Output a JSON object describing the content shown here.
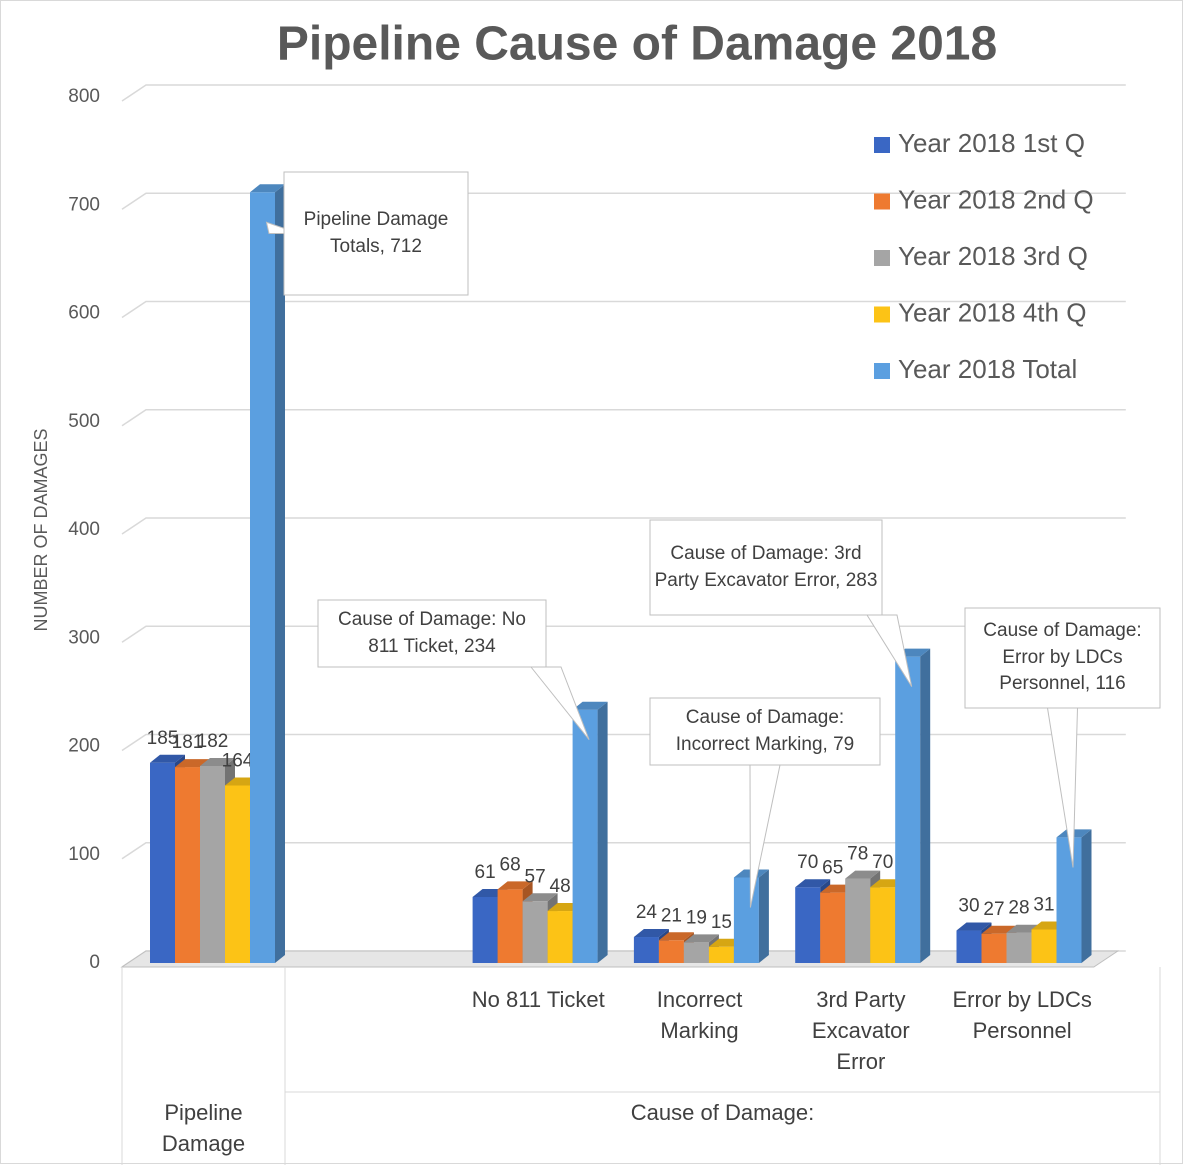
{
  "chart_data": {
    "type": "bar3d",
    "title": "Pipeline Cause of Damage 2018",
    "y_label": "NUMBER OF DAMAGES",
    "categories": [
      null,
      null,
      "No 811 Ticket",
      "Incorrect Marking",
      "3rd Party Excavator Error",
      "Error by LDCs Personnel"
    ],
    "groups": [
      {
        "label": "Pipeline Damage",
        "count": 1
      },
      {
        "label": "Cause of Damage:",
        "count": 5
      }
    ],
    "series": [
      {
        "name": "Year 2018 1st Q",
        "color": "#3a67c4",
        "values": [
          185,
          null,
          61,
          24,
          70,
          30
        ]
      },
      {
        "name": "Year 2018 2nd Q",
        "color": "#ee7a30",
        "values": [
          181,
          null,
          68,
          21,
          65,
          27
        ]
      },
      {
        "name": "Year 2018 3rd Q",
        "color": "#a5a5a5",
        "values": [
          182,
          null,
          57,
          19,
          78,
          28
        ]
      },
      {
        "name": "Year 2018 4th Q",
        "color": "#fcc316",
        "values": [
          164,
          null,
          48,
          15,
          70,
          31
        ]
      },
      {
        "name": "Year 2018 Total",
        "color": "#5b9fe0",
        "values": [
          712,
          null,
          234,
          79,
          283,
          116
        ],
        "value_labels": [
          "Pipeline Damage Totals, 712",
          null,
          "Cause of Damage: No 811 Ticket, 234",
          "Cause of Damage: Incorrect Marking, 79",
          "Cause of Damage: 3rd Party Excavator Error, 283",
          "Cause of Damage: Error by LDCs Personnel, 116"
        ]
      }
    ],
    "ylim": [
      0,
      800
    ],
    "yticks": [
      0,
      100,
      200,
      300,
      400,
      500,
      600,
      700,
      800
    ],
    "grid": true,
    "legend": "top-right"
  }
}
